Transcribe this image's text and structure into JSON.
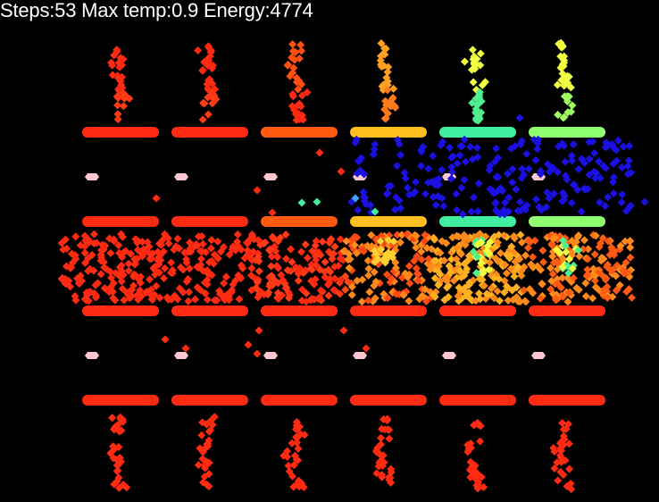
{
  "hud": {
    "steps_label": "Steps:",
    "steps": "53",
    "temp_label": "Max temp:",
    "max_temp": "0.9",
    "energy_label": "Energy:",
    "energy": "4774"
  },
  "palette": {
    "background": "#000000",
    "text": "#ffffff",
    "hot_bar": "#ff2a12",
    "slot": "#ffc8d0",
    "cold_particle": "#1a10e0",
    "particle_hot": "#ff2a12",
    "particle_warm": "#ff8a1a",
    "particle_yellow": "#f0ff40",
    "particle_green": "#50f090"
  },
  "simulation": {
    "columns": 6,
    "column_bar_colors_top": [
      "#ff2a12",
      "#ff2a12",
      "#ff5a10",
      "#ffc020",
      "#40f0a0",
      "#90ff70"
    ],
    "column_bar_colors_mid": [
      "#ff2a12",
      "#ff2a12",
      "#ff5a10",
      "#ffc020",
      "#40f0a0",
      "#90ff70"
    ],
    "column_bar_colors_low": [
      "#ff2a12",
      "#ff2a12",
      "#ff2a12",
      "#ff2a12",
      "#ff2a12",
      "#ff2a12"
    ],
    "column_bar_colors_bottom": [
      "#ff2a12",
      "#ff2a12",
      "#ff2a12",
      "#ff2a12",
      "#ff2a12",
      "#ff2a12"
    ],
    "top_stack_colors": [
      [
        "#ff2a12",
        "#ff3a14"
      ],
      [
        "#ff2a12",
        "#ff3a14"
      ],
      [
        "#ff5010",
        "#ff2a12"
      ],
      [
        "#ffa020",
        "#ff7a18"
      ],
      [
        "#f0ff40",
        "#50f090"
      ],
      [
        "#f0ff40",
        "#a0ff60"
      ]
    ],
    "blue_zone_columns": [
      3,
      4,
      5
    ]
  }
}
